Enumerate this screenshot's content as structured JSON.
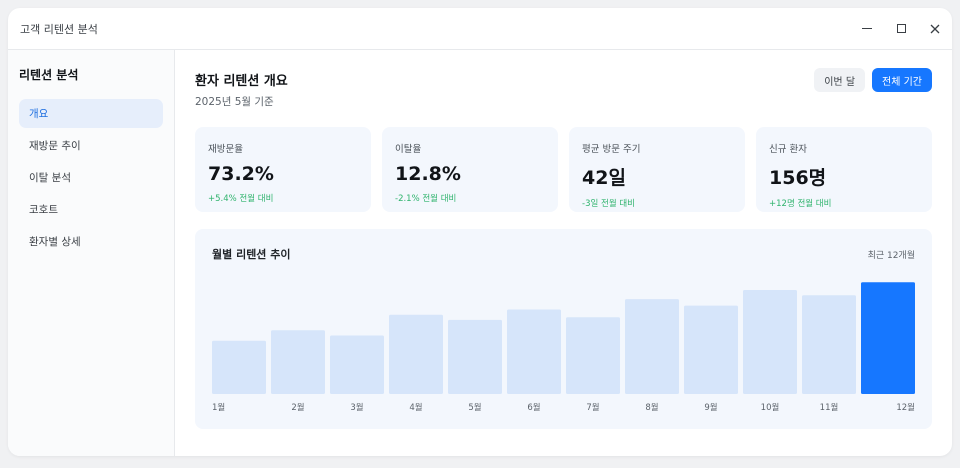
{
  "window": {
    "title": "고객 리텐션 분석"
  },
  "sidebar": {
    "title": "리텐션 분석",
    "items": [
      {
        "label": "개요",
        "active": true
      },
      {
        "label": "재방문 추이",
        "active": false
      },
      {
        "label": "이탈 분석",
        "active": false
      },
      {
        "label": "코호트",
        "active": false
      },
      {
        "label": "환자별 상세",
        "active": false
      }
    ]
  },
  "header": {
    "title": "환자 리텐션 개요",
    "subtitle": "2025년 5월 기준",
    "buttons": {
      "this_month": "이번 달",
      "all_period": "전체 기간"
    }
  },
  "cards": [
    {
      "label": "재방문율",
      "value": "73.2%",
      "delta": "+5.4% 전월 대비"
    },
    {
      "label": "이탈율",
      "value": "12.8%",
      "delta": "-2.1% 전월 대비"
    },
    {
      "label": "평균 방문 주기",
      "value": "42일",
      "delta": "-3일 전월 대비"
    },
    {
      "label": "신규 환자",
      "value": "156명",
      "delta": "+12명 전월 대비"
    }
  ],
  "chart": {
    "range_label": "최근 12개월"
  },
  "chart_data": {
    "type": "bar",
    "title": "월별 리텐션 추이",
    "categories": [
      "1월",
      "2월",
      "3월",
      "4월",
      "5월",
      "6월",
      "7월",
      "8월",
      "9월",
      "10월",
      "11월",
      "12월"
    ],
    "values": [
      41,
      49,
      45,
      61,
      57,
      65,
      59,
      73,
      68,
      80,
      76,
      86
    ],
    "ylim": [
      0,
      100
    ],
    "highlight_index": 11,
    "bar_color": "#d6e5fa",
    "highlight_color": "#1677ff",
    "grid": false,
    "legend": "none"
  },
  "colors": {
    "accent": "#1677ff",
    "positive": "#2fb36d",
    "active_nav_bg": "#e6eefb",
    "card_bg": "#f3f7fd"
  },
  "icons": {
    "minimize": "minimize-icon",
    "maximize": "maximize-icon",
    "close": "close-icon"
  }
}
